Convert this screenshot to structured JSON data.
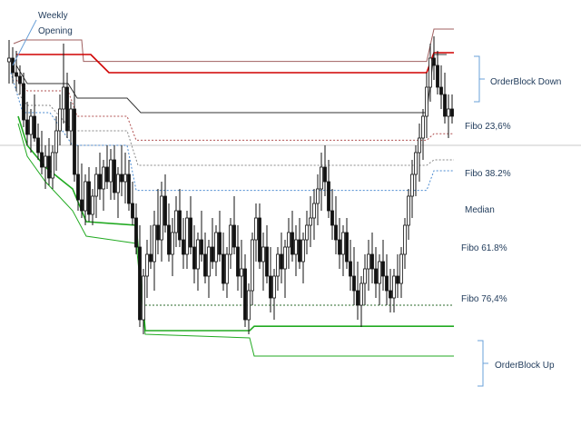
{
  "chart_data": {
    "type": "candlestick",
    "ylim": [
      0,
      100
    ],
    "annotations": {
      "weekly_opening_line1": "Weekly",
      "weekly_opening_line2": "Opening",
      "orderblock_down": "OrderBlock Down",
      "orderblock_up": "OrderBlock Up"
    },
    "levels": [
      {
        "label": "Fibo 23,6%",
        "value": 79.0,
        "color": "#222222"
      },
      {
        "label": "Fibo 38.2%",
        "value": 71.4,
        "color": "#b05050"
      },
      {
        "label": "Median",
        "value": 64.5,
        "color": "#888888"
      },
      {
        "label": "Fibo 61.8%",
        "value": 57.6,
        "color": "#4a8ad0"
      },
      {
        "label": "Fibo 76,4%",
        "value": 46.5,
        "color": "#333333"
      }
    ],
    "colors": {
      "orderblock_down_line": "#d00000",
      "orderblock_down_upper": "#a06060",
      "orderblock_up_line": "#22aa22",
      "weekly_line": "#333333",
      "annotation_text": "#1f3a5a",
      "bracket": "#6aa0d8",
      "candle": "#111111"
    },
    "steps": [
      {
        "name": "top_resistance",
        "color": "#a06060",
        "width": 1,
        "dash": "",
        "points": [
          [
            15,
            98
          ],
          [
            25,
            99
          ],
          [
            90,
            99
          ],
          [
            92,
            93.1
          ],
          [
            470,
            93.1
          ],
          [
            478,
            102
          ],
          [
            500,
            102
          ]
        ]
      },
      {
        "name": "orderblock_down_red",
        "color": "#d00000",
        "width": 1.6,
        "dash": "",
        "points": [
          [
            18,
            95
          ],
          [
            26,
            95
          ],
          [
            100,
            95
          ],
          [
            120,
            90
          ],
          [
            470,
            90
          ],
          [
            478,
            95.5
          ],
          [
            500,
            95.5
          ]
        ]
      },
      {
        "name": "weekly_opening",
        "color": "#333333",
        "width": 1,
        "dash": "",
        "points": [
          [
            18,
            92
          ],
          [
            30,
            87
          ],
          [
            75,
            87
          ],
          [
            85,
            83
          ],
          [
            140,
            83
          ],
          [
            155,
            79
          ],
          [
            470,
            79
          ],
          [
            478,
            95
          ],
          [
            492,
            95
          ]
        ]
      },
      {
        "name": "fibo_618_level",
        "color": "#4a8ad0",
        "width": 1,
        "dash": "2,2",
        "points": [
          [
            12,
            90
          ],
          [
            25,
            79
          ],
          [
            55,
            79
          ],
          [
            80,
            70
          ],
          [
            140,
            70
          ],
          [
            150,
            57.6
          ],
          [
            470,
            57.6
          ],
          [
            478,
            63
          ],
          [
            500,
            63
          ]
        ]
      },
      {
        "name": "orderblock_up_green",
        "color": "#22aa22",
        "width": 1.6,
        "dash": "",
        "points": [
          [
            20,
            78
          ],
          [
            30,
            70
          ],
          [
            50,
            64
          ],
          [
            80,
            58
          ],
          [
            95,
            49
          ],
          [
            150,
            48
          ],
          [
            160,
            19
          ],
          [
            275,
            19
          ],
          [
            280,
            20.2
          ],
          [
            500,
            20.2
          ]
        ]
      },
      {
        "name": "orderblock_up_lower",
        "color": "#22aa22",
        "width": 1,
        "dash": "",
        "points": [
          [
            20,
            76
          ],
          [
            30,
            67
          ],
          [
            50,
            60
          ],
          [
            80,
            52
          ],
          [
            95,
            45
          ],
          [
            150,
            43
          ],
          [
            160,
            18
          ],
          [
            275,
            17
          ],
          [
            280,
            12
          ],
          [
            500,
            12
          ]
        ]
      }
    ],
    "dashed_segments": [
      {
        "color": "#b05050",
        "points": [
          [
            18,
            88
          ],
          [
            30,
            85
          ],
          [
            75,
            85
          ],
          [
            85,
            78
          ],
          [
            140,
            78
          ],
          [
            150,
            71.4
          ],
          [
            470,
            71.4
          ],
          [
            478,
            73.2
          ],
          [
            500,
            73.2
          ]
        ]
      },
      {
        "color": "#888888",
        "points": [
          [
            18,
            85
          ],
          [
            30,
            81
          ],
          [
            55,
            81
          ],
          [
            80,
            74
          ],
          [
            140,
            74
          ],
          [
            152,
            64.5
          ],
          [
            470,
            64.5
          ],
          [
            478,
            66
          ],
          [
            500,
            66
          ]
        ]
      },
      {
        "color": "#2a6a2a",
        "points": [
          [
            160,
            26
          ],
          [
            470,
            26
          ],
          [
            500,
            26
          ]
        ]
      }
    ],
    "candles": [
      [
        10,
        93,
        99,
        87,
        94
      ],
      [
        14,
        94,
        97,
        87,
        90
      ],
      [
        18,
        90,
        96,
        85,
        89
      ],
      [
        22,
        89,
        92,
        84,
        87
      ],
      [
        26,
        87,
        90,
        75,
        77
      ],
      [
        30,
        77,
        82,
        70,
        73
      ],
      [
        34,
        73,
        80,
        68,
        78
      ],
      [
        38,
        78,
        84,
        71,
        72
      ],
      [
        42,
        72,
        76,
        66,
        68
      ],
      [
        46,
        68,
        74,
        62,
        64
      ],
      [
        50,
        64,
        70,
        58,
        67
      ],
      [
        54,
        67,
        72,
        59,
        61
      ],
      [
        58,
        61,
        70,
        58,
        68
      ],
      [
        62,
        68,
        78,
        63,
        74
      ],
      [
        66,
        74,
        84,
        70,
        80
      ],
      [
        70,
        80,
        98,
        76,
        86
      ],
      [
        74,
        86,
        90,
        72,
        74
      ],
      [
        78,
        74,
        82,
        70,
        80
      ],
      [
        82,
        80,
        88,
        60,
        62
      ],
      [
        86,
        62,
        70,
        52,
        55
      ],
      [
        90,
        55,
        65,
        50,
        52
      ],
      [
        94,
        52,
        62,
        48,
        60
      ],
      [
        98,
        60,
        64,
        49,
        51
      ],
      [
        102,
        51,
        58,
        48,
        56
      ],
      [
        106,
        56,
        64,
        50,
        62
      ],
      [
        110,
        62,
        68,
        55,
        58
      ],
      [
        114,
        58,
        66,
        52,
        64
      ],
      [
        118,
        64,
        70,
        58,
        60
      ],
      [
        122,
        60,
        69,
        55,
        66
      ],
      [
        126,
        66,
        70,
        55,
        57
      ],
      [
        130,
        57,
        64,
        50,
        62
      ],
      [
        134,
        62,
        70,
        56,
        60
      ],
      [
        138,
        60,
        68,
        54,
        62
      ],
      [
        142,
        62,
        66,
        52,
        54
      ],
      [
        146,
        54,
        60,
        48,
        50
      ],
      [
        150,
        50,
        54,
        40,
        42
      ],
      [
        154,
        42,
        48,
        20,
        22
      ],
      [
        158,
        22,
        36,
        18,
        34
      ],
      [
        162,
        34,
        44,
        28,
        40
      ],
      [
        166,
        40,
        48,
        36,
        38
      ],
      [
        170,
        38,
        52,
        30,
        48
      ],
      [
        174,
        48,
        58,
        40,
        44
      ],
      [
        178,
        44,
        60,
        38,
        56
      ],
      [
        182,
        56,
        62,
        46,
        48
      ],
      [
        186,
        48,
        54,
        38,
        40
      ],
      [
        190,
        40,
        50,
        34,
        46
      ],
      [
        194,
        46,
        56,
        42,
        52
      ],
      [
        198,
        52,
        58,
        42,
        44
      ],
      [
        202,
        44,
        50,
        36,
        40
      ],
      [
        206,
        40,
        52,
        36,
        50
      ],
      [
        210,
        50,
        56,
        40,
        42
      ],
      [
        214,
        42,
        48,
        32,
        36
      ],
      [
        218,
        36,
        46,
        30,
        44
      ],
      [
        222,
        44,
        52,
        38,
        40
      ],
      [
        226,
        40,
        46,
        32,
        34
      ],
      [
        230,
        34,
        44,
        28,
        42
      ],
      [
        234,
        42,
        50,
        36,
        38
      ],
      [
        238,
        38,
        48,
        34,
        46
      ],
      [
        242,
        46,
        52,
        38,
        40
      ],
      [
        246,
        40,
        46,
        30,
        32
      ],
      [
        250,
        32,
        42,
        28,
        40
      ],
      [
        254,
        40,
        50,
        36,
        48
      ],
      [
        258,
        48,
        56,
        40,
        42
      ],
      [
        262,
        42,
        48,
        30,
        34
      ],
      [
        266,
        34,
        44,
        28,
        36
      ],
      [
        270,
        36,
        40,
        20,
        22
      ],
      [
        274,
        22,
        32,
        18,
        30
      ],
      [
        278,
        30,
        46,
        26,
        44
      ],
      [
        282,
        44,
        54,
        38,
        50
      ],
      [
        286,
        50,
        54,
        36,
        38
      ],
      [
        290,
        38,
        46,
        30,
        42
      ],
      [
        294,
        42,
        48,
        32,
        34
      ],
      [
        298,
        34,
        42,
        24,
        28
      ],
      [
        302,
        28,
        36,
        22,
        34
      ],
      [
        306,
        34,
        42,
        30,
        40
      ],
      [
        310,
        40,
        46,
        32,
        36
      ],
      [
        314,
        36,
        44,
        28,
        42
      ],
      [
        318,
        42,
        50,
        36,
        46
      ],
      [
        322,
        46,
        52,
        38,
        40
      ],
      [
        326,
        40,
        48,
        34,
        44
      ],
      [
        330,
        44,
        50,
        36,
        38
      ],
      [
        334,
        38,
        46,
        32,
        44
      ],
      [
        338,
        44,
        52,
        40,
        48
      ],
      [
        342,
        48,
        56,
        42,
        50
      ],
      [
        346,
        50,
        58,
        44,
        54
      ],
      [
        350,
        54,
        62,
        48,
        58
      ],
      [
        354,
        58,
        68,
        52,
        64
      ],
      [
        358,
        64,
        70,
        56,
        60
      ],
      [
        362,
        60,
        66,
        50,
        52
      ],
      [
        366,
        52,
        58,
        44,
        48
      ],
      [
        370,
        48,
        56,
        40,
        44
      ],
      [
        374,
        44,
        50,
        36,
        40
      ],
      [
        378,
        40,
        48,
        34,
        46
      ],
      [
        382,
        46,
        50,
        36,
        38
      ],
      [
        386,
        38,
        44,
        30,
        34
      ],
      [
        390,
        34,
        42,
        26,
        30
      ],
      [
        394,
        30,
        38,
        22,
        26
      ],
      [
        398,
        26,
        34,
        20,
        32
      ],
      [
        402,
        32,
        40,
        26,
        36
      ],
      [
        406,
        36,
        44,
        30,
        40
      ],
      [
        410,
        40,
        46,
        32,
        36
      ],
      [
        414,
        36,
        42,
        28,
        32
      ],
      [
        418,
        32,
        40,
        26,
        38
      ],
      [
        422,
        38,
        44,
        30,
        34
      ],
      [
        426,
        34,
        40,
        26,
        30
      ],
      [
        430,
        30,
        36,
        24,
        28
      ],
      [
        434,
        28,
        36,
        24,
        34
      ],
      [
        438,
        34,
        40,
        28,
        32
      ],
      [
        442,
        32,
        42,
        28,
        40
      ],
      [
        446,
        40,
        50,
        36,
        48
      ],
      [
        450,
        48,
        58,
        44,
        56
      ],
      [
        454,
        56,
        66,
        50,
        62
      ],
      [
        458,
        62,
        70,
        56,
        68
      ],
      [
        462,
        68,
        76,
        60,
        72
      ],
      [
        466,
        72,
        80,
        66,
        78
      ],
      [
        470,
        78,
        90,
        72,
        86
      ],
      [
        474,
        86,
        98,
        82,
        94
      ],
      [
        478,
        94,
        100,
        88,
        92
      ],
      [
        482,
        92,
        96,
        84,
        86
      ],
      [
        486,
        86,
        92,
        80,
        84
      ],
      [
        490,
        84,
        90,
        76,
        78
      ],
      [
        494,
        78,
        84,
        72,
        80
      ],
      [
        498,
        80,
        84,
        76,
        78
      ]
    ]
  }
}
